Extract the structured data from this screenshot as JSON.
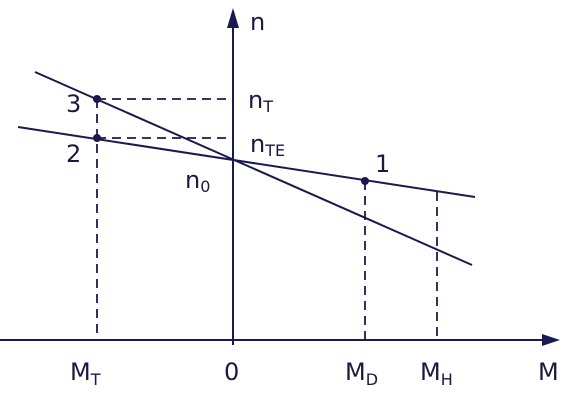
{
  "axes": {
    "vertical": "n",
    "horizontal": "M"
  },
  "points": [
    {
      "label": "3"
    },
    {
      "label": "2"
    },
    {
      "label": "1"
    }
  ],
  "vertical_labels": [
    {
      "base": "n",
      "sub": "T"
    },
    {
      "base": "n",
      "sub": "TE"
    },
    {
      "base": "n",
      "sub": "0"
    }
  ],
  "horizontal_labels": [
    {
      "base": "M",
      "sub": "T"
    },
    {
      "base": "0"
    },
    {
      "base": "M",
      "sub": "D"
    },
    {
      "base": "M",
      "sub": "H"
    }
  ]
}
